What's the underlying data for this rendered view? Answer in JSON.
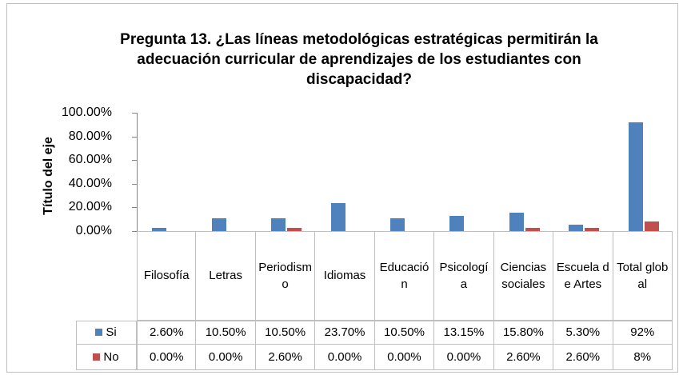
{
  "chart_data": {
    "type": "bar",
    "title": "Pregunta 13. ¿Las líneas metodológicas estratégicas permitirán la adecuación curricular de aprendizajes de los estudiantes con discapacidad?",
    "y_axis_title": "Título del eje",
    "categories": [
      "Filosofía",
      "Letras",
      "Periodismo",
      "Idiomas",
      "Educación",
      "Psicología",
      "Ciencias sociales",
      "Escuela de Artes",
      "Total global"
    ],
    "series": [
      {
        "name": "Si",
        "color": "#4f81bd",
        "values": [
          2.6,
          10.5,
          10.5,
          23.7,
          10.5,
          13.15,
          15.8,
          5.3,
          92
        ],
        "value_labels": [
          "2.60%",
          "10.50%",
          "10.50%",
          "23.70%",
          "10.50%",
          "13.15%",
          "15.80%",
          "5.30%",
          "92%"
        ]
      },
      {
        "name": "No",
        "color": "#c0504d",
        "values": [
          0,
          0,
          2.6,
          0,
          0,
          0,
          2.6,
          2.6,
          8
        ],
        "value_labels": [
          "0.00%",
          "0.00%",
          "2.60%",
          "0.00%",
          "0.00%",
          "0.00%",
          "2.60%",
          "2.60%",
          "8%"
        ]
      }
    ],
    "ylim": [
      0,
      100
    ],
    "yticks": [
      {
        "value": 0,
        "label": "0.00%"
      },
      {
        "value": 20,
        "label": "20.00%"
      },
      {
        "value": 40,
        "label": "40.00%"
      },
      {
        "value": 60,
        "label": "60.00%"
      },
      {
        "value": 80,
        "label": "80.00%"
      },
      {
        "value": 100,
        "label": "100.00%"
      }
    ],
    "grid": false
  }
}
